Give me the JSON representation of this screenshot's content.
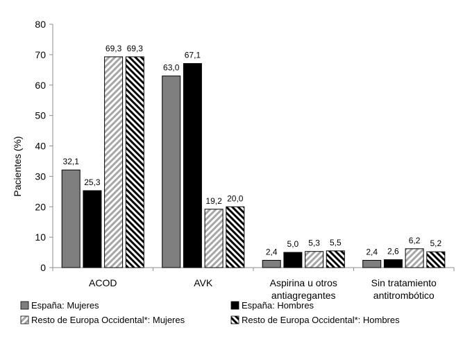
{
  "chart_data": {
    "type": "bar",
    "ylabel": "Pacientes (%)",
    "ylim": [
      0,
      80
    ],
    "yticks": [
      0,
      10,
      20,
      30,
      40,
      50,
      60,
      70,
      80
    ],
    "grid": false,
    "legend_placement": "bottom",
    "categories": [
      [
        "ACOD"
      ],
      [
        "AVK"
      ],
      [
        "Aspirina u otros",
        "antiagregantes"
      ],
      [
        "Sin tratamiento",
        "antitrombótico"
      ]
    ],
    "series": [
      {
        "name": "España: Mujeres",
        "fill": "solid",
        "color": "#7f7f7f",
        "values": [
          32.1,
          63.0,
          2.4,
          2.4
        ],
        "labels": [
          "32,1",
          "63,0",
          "2,4",
          "2,4"
        ]
      },
      {
        "name": "España: Hombres",
        "fill": "solid",
        "color": "#000000",
        "values": [
          25.3,
          67.1,
          5.0,
          2.6
        ],
        "labels": [
          "25,3",
          "67,1",
          "5,0",
          "2,6"
        ]
      },
      {
        "name": "Resto de Europa Occidental*: Mujeres",
        "fill": "hatch-gray",
        "color": "#a6a6a6",
        "values": [
          69.3,
          19.2,
          5.3,
          6.2
        ],
        "labels": [
          "69,3",
          "19,2",
          "5,3",
          "6,2"
        ]
      },
      {
        "name": "Resto de Europa Occidental*: Hombres",
        "fill": "hatch-black",
        "color": "#000000",
        "values": [
          69.3,
          20.0,
          5.5,
          5.2
        ],
        "labels": [
          "69,3",
          "20,0",
          "5,5",
          "5,2"
        ]
      }
    ]
  }
}
